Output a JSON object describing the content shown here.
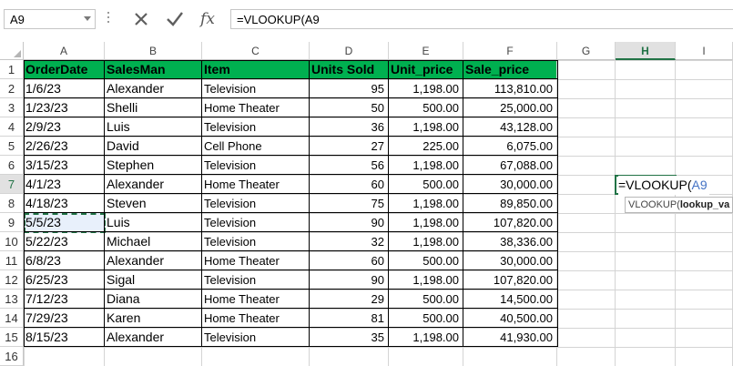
{
  "name_box": "A9",
  "formula_bar": "=VLOOKUP(A9",
  "columns": [
    "A",
    "B",
    "C",
    "D",
    "E",
    "F",
    "G",
    "H",
    "I"
  ],
  "selected_column": "H",
  "rows": [
    "1",
    "2",
    "3",
    "4",
    "5",
    "6",
    "7",
    "8",
    "9",
    "10",
    "11",
    "12",
    "13",
    "14",
    "15",
    "16"
  ],
  "selected_row": "7",
  "table": {
    "headers": [
      "OrderDate",
      "SalesMan",
      "Item",
      "Units Sold",
      "Unit_price",
      "Sale_price"
    ],
    "records": [
      [
        "1/6/23",
        "Alexander",
        "Television",
        "95",
        "1,198.00",
        "113,810.00"
      ],
      [
        "1/23/23",
        "Shelli",
        "Home Theater",
        "50",
        "500.00",
        "25,000.00"
      ],
      [
        "2/9/23",
        "Luis",
        "Television",
        "36",
        "1,198.00",
        "43,128.00"
      ],
      [
        "2/26/23",
        "David",
        "Cell Phone",
        "27",
        "225.00",
        "6,075.00"
      ],
      [
        "3/15/23",
        "Stephen",
        "Television",
        "56",
        "1,198.00",
        "67,088.00"
      ],
      [
        "4/1/23",
        "Alexander",
        "Home Theater",
        "60",
        "500.00",
        "30,000.00"
      ],
      [
        "4/18/23",
        "Steven",
        "Television",
        "75",
        "1,198.00",
        "89,850.00"
      ],
      [
        "5/5/23",
        "Luis",
        "Television",
        "90",
        "1,198.00",
        "107,820.00"
      ],
      [
        "5/22/23",
        "Michael",
        "Television",
        "32",
        "1,198.00",
        "38,336.00"
      ],
      [
        "6/8/23",
        "Alexander",
        "Home Theater",
        "60",
        "500.00",
        "30,000.00"
      ],
      [
        "6/25/23",
        "Sigal",
        "Television",
        "90",
        "1,198.00",
        "107,820.00"
      ],
      [
        "7/12/23",
        "Diana",
        "Home Theater",
        "29",
        "500.00",
        "14,500.00"
      ],
      [
        "7/29/23",
        "Karen",
        "Home Theater",
        "81",
        "500.00",
        "40,500.00"
      ],
      [
        "8/15/23",
        "Alexander",
        "Television",
        "35",
        "1,198.00",
        "41,930.00"
      ]
    ]
  },
  "active_cell": {
    "prefix": "=VLOOKUP(",
    "ref": "A9"
  },
  "tooltip": {
    "func": "VLOOKUP(",
    "arg": "lookup_va"
  },
  "icons": {
    "cancel": "close-icon",
    "enter": "check-icon",
    "function": "fx-icon"
  },
  "colors": {
    "header_fill": "#00b050",
    "accent": "#217346",
    "ref_blue": "#4472c4"
  }
}
